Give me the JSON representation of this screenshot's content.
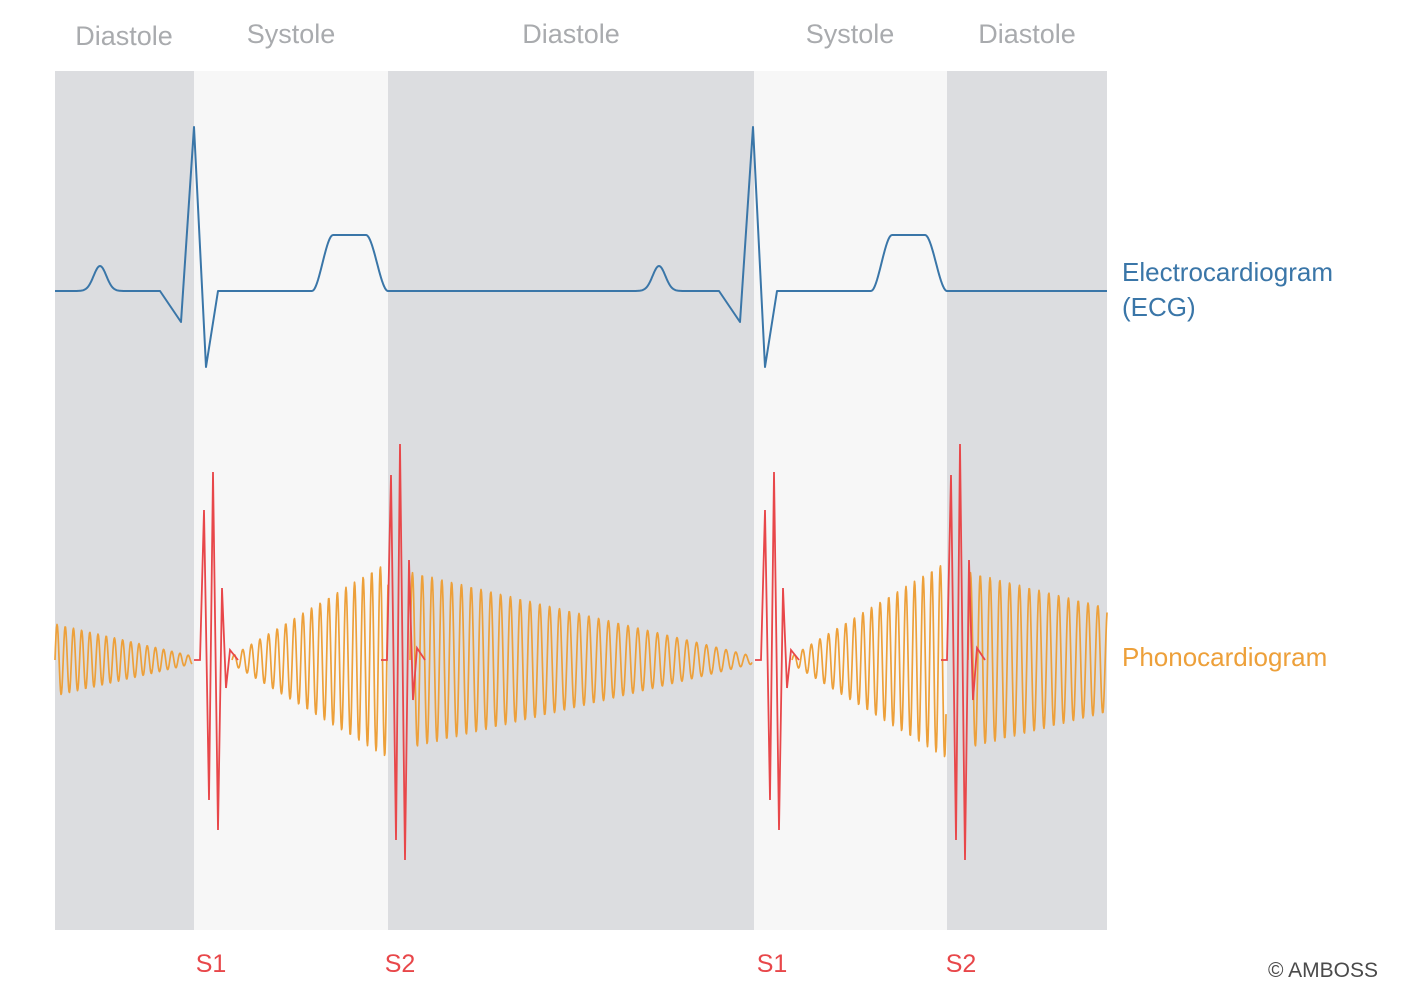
{
  "phases": [
    {
      "label": "Diastole",
      "kind": "diastole"
    },
    {
      "label": "Systole",
      "kind": "systole"
    },
    {
      "label": "Diastole",
      "kind": "diastole"
    },
    {
      "label": "Systole",
      "kind": "systole"
    },
    {
      "label": "Diastole",
      "kind": "diastole"
    }
  ],
  "heart_sounds": [
    {
      "label": "S1"
    },
    {
      "label": "S2"
    },
    {
      "label": "S1"
    },
    {
      "label": "S2"
    }
  ],
  "traces": {
    "ecg": {
      "label_line1": "Electrocardiogram",
      "label_line2": "(ECG)",
      "color": "#3a76a8"
    },
    "pcg": {
      "label": "Phonocardiogram",
      "color": "#eda03a",
      "highlight_color": "#e8474a"
    }
  },
  "colors": {
    "diastole_band": "#dcdde0",
    "systole_band": "#f7f7f7"
  },
  "credit": "© AMBOSS"
}
